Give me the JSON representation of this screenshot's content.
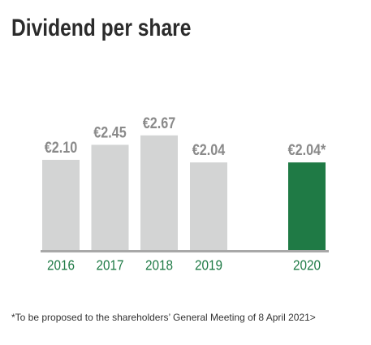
{
  "chart_data": {
    "type": "bar",
    "title": "Dividend per share",
    "categories": [
      "2016",
      "2017",
      "2018",
      "2019",
      "2020"
    ],
    "values": [
      2.1,
      2.45,
      2.67,
      2.04,
      2.04
    ],
    "value_labels": [
      "€2.10",
      "€2.45",
      "€2.67",
      "€2.04",
      "€2.04*"
    ],
    "colors": [
      "#d3d4d4",
      "#d3d4d4",
      "#d3d4d4",
      "#d3d4d4",
      "#1f7a45"
    ],
    "footnote": "*To be proposed to the shareholders’ General Meeting of 8 April 2021>"
  }
}
